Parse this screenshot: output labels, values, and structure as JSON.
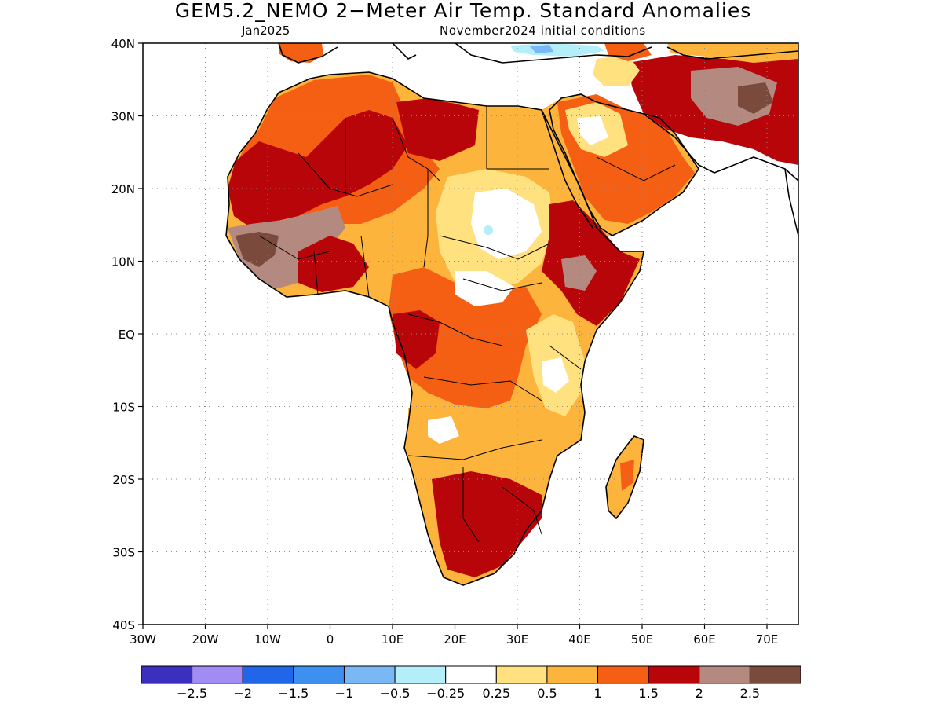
{
  "title": "GEM5.2_NEMO 2−Meter Air Temp. Standard Anomalies",
  "target_month": "Jan2025",
  "initial_conditions": "November2024 initial conditions",
  "map": {
    "lon_range": [
      -30,
      75
    ],
    "lat_range": [
      -40,
      40
    ],
    "lat_ticks": [
      "40N",
      "30N",
      "20N",
      "10N",
      "EQ",
      "10S",
      "20S",
      "30S",
      "40S"
    ],
    "lon_ticks": [
      "30W",
      "20W",
      "10W",
      "0",
      "10E",
      "20E",
      "30E",
      "40E",
      "50E",
      "60E",
      "70E"
    ],
    "grid": "dotted"
  },
  "legend": {
    "labels": [
      "−2.5",
      "−2",
      "−1.5",
      "−1",
      "−0.5",
      "−0.25",
      "0.25",
      "0.5",
      "1",
      "1.5",
      "2",
      "2.5"
    ],
    "colors": [
      "#3a2fbf",
      "#a08cf2",
      "#2166e8",
      "#3d8ff0",
      "#7ab8f5",
      "#b4eef8",
      "#ffffff",
      "#ffe17f",
      "#fdb43c",
      "#f45f14",
      "#b8050a",
      "#b48a80",
      "#7a4a3c"
    ]
  },
  "regions": [
    {
      "name": "africa-landmass",
      "color": "#fdb43c"
    },
    {
      "name": "nw-sahara-anomaly",
      "color": "#f45f14"
    },
    {
      "name": "west-africa-anomaly",
      "color": "#b8050a"
    },
    {
      "name": "sahel-anomaly",
      "color": "#b48a80"
    },
    {
      "name": "sudan-anomaly",
      "color": "#ffffff"
    },
    {
      "name": "southern-africa-anomaly",
      "color": "#b8050a"
    },
    {
      "name": "arabia-anomaly",
      "color": "#f45f14"
    },
    {
      "name": "iran-anomaly",
      "color": "#b8050a"
    }
  ]
}
